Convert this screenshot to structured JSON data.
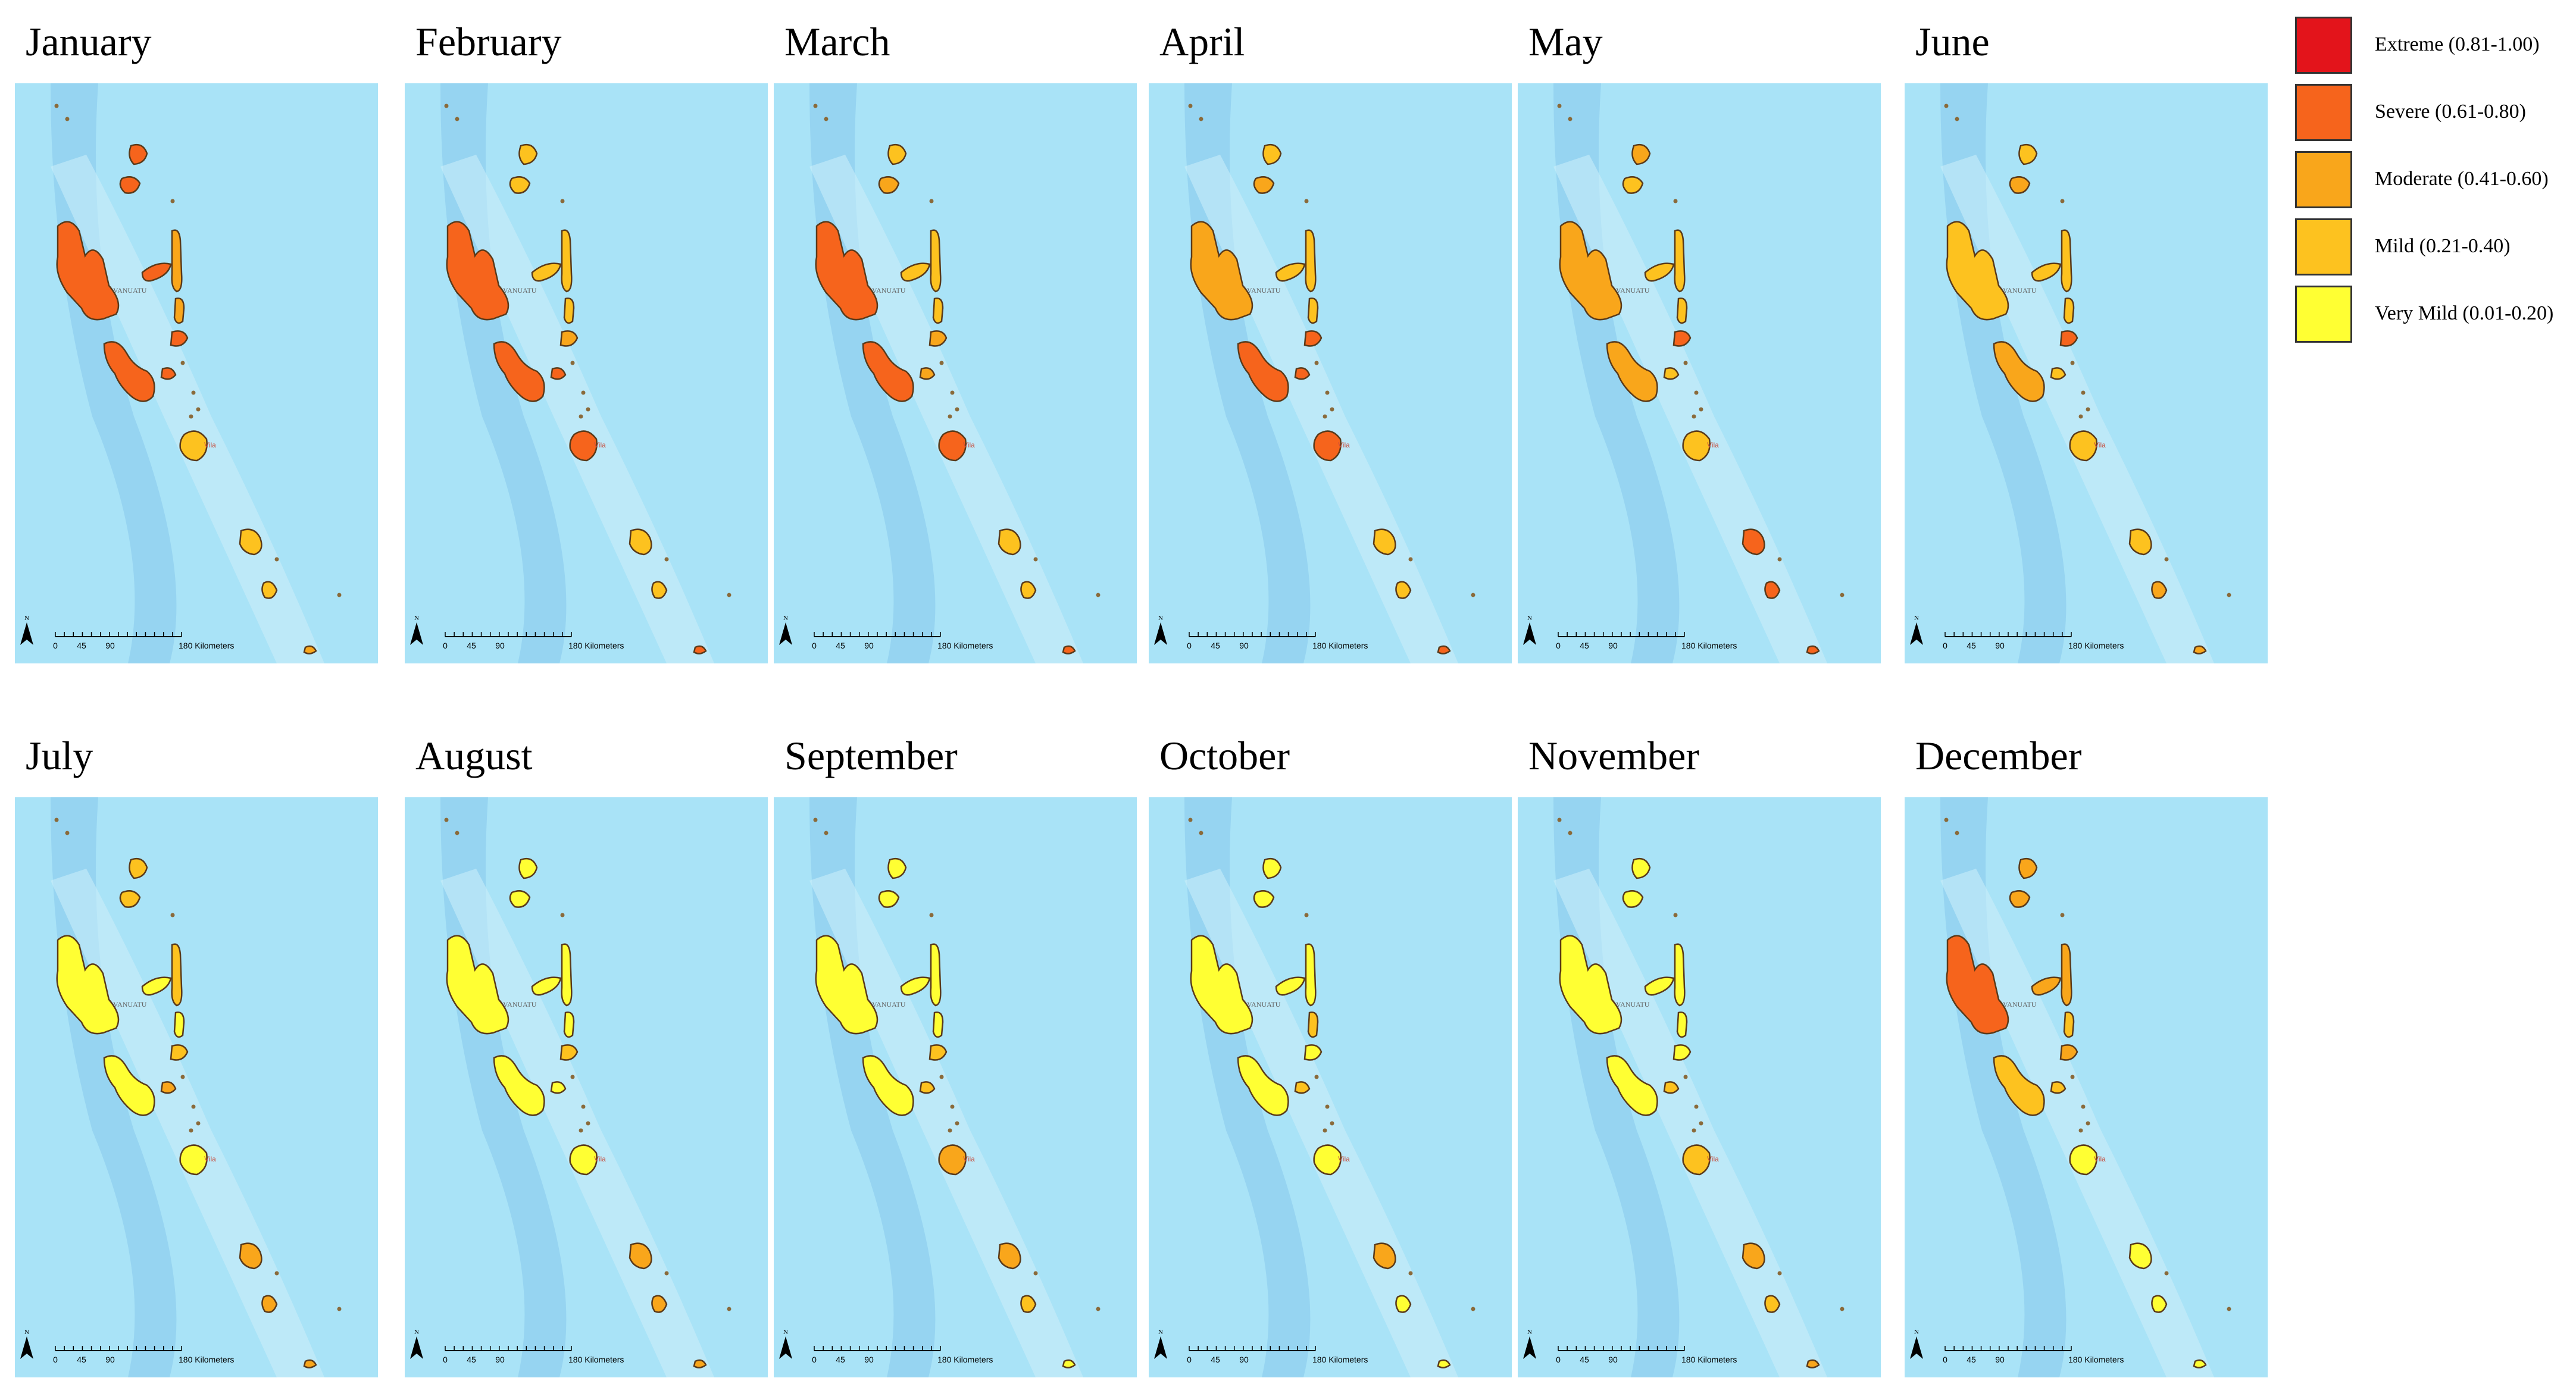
{
  "panels": [
    {
      "month": "January",
      "colors": {
        "north": "#f6641c",
        "banks": "#f6641c",
        "santo": "#f6641c",
        "malekula": "#f6641c",
        "pentecost": "#f9a61b",
        "maewo": "#f9a61b",
        "ambae": "#f6641c",
        "epi": "#f6641c",
        "shepherds": "#f6641c",
        "efate": "#fdc21f",
        "erromango": "#fdc21f",
        "tanna": "#fdc21f",
        "aneityum": "#f9a61b"
      }
    },
    {
      "month": "February",
      "colors": {
        "north": "#fdc21f",
        "banks": "#fdc21f",
        "santo": "#f6641c",
        "malekula": "#f6641c",
        "pentecost": "#fdc21f",
        "maewo": "#fdc21f",
        "ambae": "#fdc21f",
        "epi": "#f9a61b",
        "shepherds": "#f6641c",
        "efate": "#f6641c",
        "erromango": "#fdc21f",
        "tanna": "#fdc21f",
        "aneityum": "#f6641c"
      }
    },
    {
      "month": "March",
      "colors": {
        "north": "#fdc21f",
        "banks": "#f9a61b",
        "santo": "#f6641c",
        "malekula": "#f6641c",
        "pentecost": "#fdc21f",
        "maewo": "#fdc21f",
        "ambae": "#fdc21f",
        "epi": "#f9a61b",
        "shepherds": "#f9a61b",
        "efate": "#f6641c",
        "erromango": "#fdc21f",
        "tanna": "#fdc21f",
        "aneityum": "#f6641c"
      }
    },
    {
      "month": "April",
      "colors": {
        "north": "#fdc21f",
        "banks": "#f9a61b",
        "santo": "#f9a61b",
        "malekula": "#f6641c",
        "pentecost": "#fdc21f",
        "maewo": "#fdc21f",
        "ambae": "#fdc21f",
        "epi": "#f6641c",
        "shepherds": "#f6641c",
        "efate": "#f6641c",
        "erromango": "#fdc21f",
        "tanna": "#fdc21f",
        "aneityum": "#f6641c"
      }
    },
    {
      "month": "May",
      "colors": {
        "north": "#f9a61b",
        "banks": "#fdc21f",
        "santo": "#f9a61b",
        "malekula": "#f9a61b",
        "pentecost": "#fdc21f",
        "maewo": "#fdc21f",
        "ambae": "#fdc21f",
        "epi": "#f6641c",
        "shepherds": "#fdc21f",
        "efate": "#fdc21f",
        "erromango": "#f6641c",
        "tanna": "#f6641c",
        "aneityum": "#f6641c"
      }
    },
    {
      "month": "June",
      "colors": {
        "north": "#fdc21f",
        "banks": "#f9a61b",
        "santo": "#fdc21f",
        "malekula": "#f9a61b",
        "pentecost": "#fdc21f",
        "maewo": "#fdc21f",
        "ambae": "#fdc21f",
        "epi": "#f6641c",
        "shepherds": "#fdc21f",
        "efate": "#fdc21f",
        "erromango": "#fdc21f",
        "tanna": "#f9a61b",
        "aneityum": "#f9a61b"
      }
    },
    {
      "month": "July",
      "colors": {
        "north": "#fdc21f",
        "banks": "#fdc21f",
        "santo": "#ffff33",
        "malekula": "#ffff33",
        "pentecost": "#fdc21f",
        "maewo": "#ffff33",
        "ambae": "#ffff33",
        "epi": "#fdc21f",
        "shepherds": "#f9a61b",
        "efate": "#ffff33",
        "erromango": "#f9a61b",
        "tanna": "#f9a61b",
        "aneityum": "#f9a61b"
      }
    },
    {
      "month": "August",
      "colors": {
        "north": "#ffff33",
        "banks": "#ffff33",
        "santo": "#ffff33",
        "malekula": "#ffff33",
        "pentecost": "#ffff33",
        "maewo": "#ffff33",
        "ambae": "#ffff33",
        "epi": "#fdc21f",
        "shepherds": "#ffff33",
        "efate": "#ffff33",
        "erromango": "#f9a61b",
        "tanna": "#f9a61b",
        "aneityum": "#f9a61b"
      }
    },
    {
      "month": "September",
      "colors": {
        "north": "#ffff33",
        "banks": "#ffff33",
        "santo": "#ffff33",
        "malekula": "#ffff33",
        "pentecost": "#ffff33",
        "maewo": "#ffff33",
        "ambae": "#ffff33",
        "epi": "#fdc21f",
        "shepherds": "#fdc21f",
        "efate": "#f9a61b",
        "erromango": "#f9a61b",
        "tanna": "#fdc21f",
        "aneityum": "#ffff33"
      }
    },
    {
      "month": "October",
      "colors": {
        "north": "#ffff33",
        "banks": "#ffff33",
        "santo": "#ffff33",
        "malekula": "#ffff33",
        "pentecost": "#ffff33",
        "maewo": "#fdc21f",
        "ambae": "#ffff33",
        "epi": "#ffff33",
        "shepherds": "#fdc21f",
        "efate": "#ffff33",
        "erromango": "#f9a61b",
        "tanna": "#ffff33",
        "aneityum": "#ffff33"
      }
    },
    {
      "month": "November",
      "colors": {
        "north": "#ffff33",
        "banks": "#ffff33",
        "santo": "#ffff33",
        "malekula": "#ffff33",
        "pentecost": "#ffff33",
        "maewo": "#ffff33",
        "ambae": "#ffff33",
        "epi": "#ffff33",
        "shepherds": "#fdc21f",
        "efate": "#fdc21f",
        "erromango": "#f9a61b",
        "tanna": "#fdc21f",
        "aneityum": "#f9a61b"
      }
    },
    {
      "month": "December",
      "colors": {
        "north": "#f9a61b",
        "banks": "#f9a61b",
        "santo": "#f6641c",
        "malekula": "#fdc21f",
        "pentecost": "#f9a61b",
        "maewo": "#fdc21f",
        "ambae": "#f9a61b",
        "epi": "#f9a61b",
        "shepherds": "#fdc21f",
        "efate": "#ffff33",
        "erromango": "#ffff33",
        "tanna": "#ffff33",
        "aneityum": "#ffff33"
      }
    }
  ],
  "map_labels": {
    "country": "VANUATU",
    "capital": "Vila",
    "north_symbol": "N",
    "scale_ticks": [
      "0",
      "45",
      "90",
      "180 Kilometers"
    ]
  },
  "legend": [
    {
      "label": "Extreme (0.81-1.00)",
      "color": "#e3141b"
    },
    {
      "label": "Severe (0.61-0.80)",
      "color": "#f6641c"
    },
    {
      "label": "Moderate (0.41-0.60)",
      "color": "#f9a61b"
    },
    {
      "label": "Mild (0.21-0.40)",
      "color": "#fdc21f"
    },
    {
      "label": "Very Mild (0.01-0.20)",
      "color": "#ffff33"
    }
  ],
  "colors": {
    "sea": "#a9e3f7",
    "trench": "#8ecdee",
    "ridge": "#cdeefa",
    "island_stroke": "#5a3a1a"
  }
}
